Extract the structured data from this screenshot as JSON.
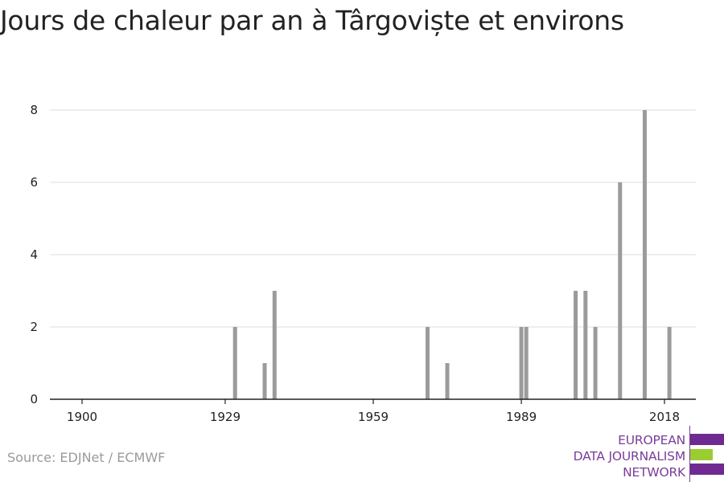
{
  "title": "Jours de chaleur par an à Târgoviște et environs",
  "source": "Source: EDJNet / ECMWF",
  "logo": {
    "lines": [
      "EUROPEAN",
      "DATA JOURNALISM",
      "NETWORK"
    ],
    "colors": {
      "text": "#7a3d9a",
      "bar_top": "#6f2a92",
      "bar_middle": "#9acd32",
      "bar_bottom": "#6f2a92"
    }
  },
  "chart_data": {
    "type": "bar",
    "title": "Jours de chaleur par an à Târgoviște et environs",
    "xlabel": "",
    "ylabel": "",
    "xlim": [
      1900,
      2018
    ],
    "ylim": [
      0,
      8
    ],
    "x_ticks": [
      1900,
      1929,
      1959,
      1989,
      2018
    ],
    "y_ticks": [
      0,
      2,
      4,
      6,
      8
    ],
    "grid": true,
    "bar_color": "#9b9b9b",
    "x": [
      1931,
      1937,
      1939,
      1970,
      1974,
      1989,
      1990,
      2000,
      2002,
      2004,
      2009,
      2014,
      2019
    ],
    "values": [
      2,
      1,
      3,
      2,
      1,
      2,
      2,
      3,
      3,
      2,
      6,
      8,
      2
    ]
  }
}
